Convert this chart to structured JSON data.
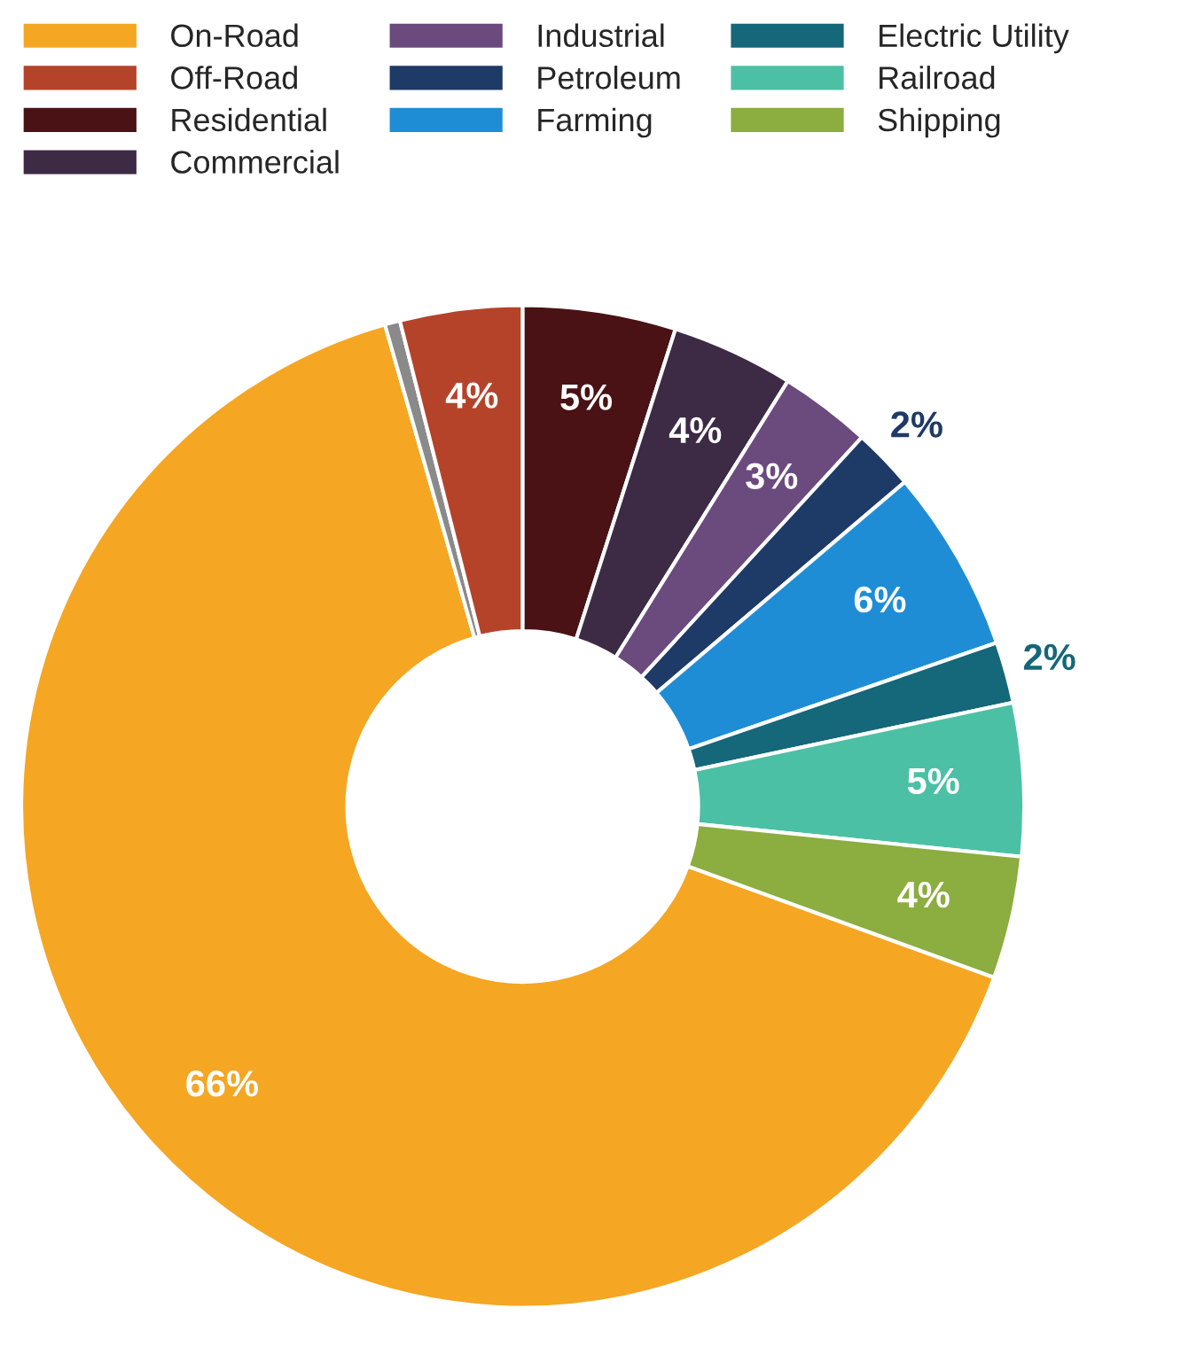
{
  "chart_data": {
    "type": "donut",
    "categories": [
      "On-Road",
      null,
      "Off-Road",
      "Residential",
      "Commercial",
      "Industrial",
      "Petroleum",
      "Farming",
      "Electric Utility",
      "Railroad",
      "Shipping"
    ],
    "values": [
      66,
      0.5,
      4,
      5,
      4,
      3,
      2,
      6,
      2,
      5,
      4
    ],
    "value_labels": [
      "66%",
      null,
      "4%",
      "5%",
      "4%",
      "3%",
      "2%",
      "6%",
      "2%",
      "5%",
      "4%"
    ],
    "colors": [
      "#f5a623",
      "#8a8a8a",
      "#b5432a",
      "#4a1214",
      "#3d2a45",
      "#6b4a7e",
      "#1e3a66",
      "#1f8dd6",
      "#15677a",
      "#4cc0a4",
      "#8cad3f"
    ],
    "legend": "top"
  }
}
